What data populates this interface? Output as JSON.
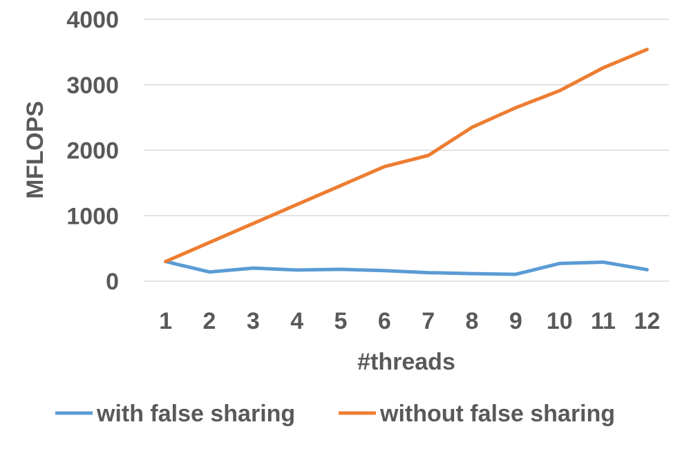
{
  "chart_data": {
    "type": "line",
    "title": "",
    "xlabel": "#threads",
    "ylabel": "MFLOPS",
    "categories": [
      "1",
      "2",
      "3",
      "4",
      "5",
      "6",
      "7",
      "8",
      "9",
      "10",
      "11",
      "12"
    ],
    "ylim": [
      0,
      4000
    ],
    "yticks": [
      "0",
      "1000",
      "2000",
      "3000",
      "4000"
    ],
    "grid": true,
    "legend_position": "bottom",
    "series": [
      {
        "name": "with false sharing",
        "color": "#5b9bd5",
        "values": [
          300,
          140,
          200,
          170,
          180,
          160,
          130,
          115,
          105,
          270,
          290,
          175
        ]
      },
      {
        "name": "without false sharing",
        "color": "#ed7d31",
        "values": [
          300,
          590,
          880,
          1170,
          1460,
          1750,
          1920,
          2350,
          2650,
          2910,
          3260,
          3540
        ]
      }
    ]
  }
}
